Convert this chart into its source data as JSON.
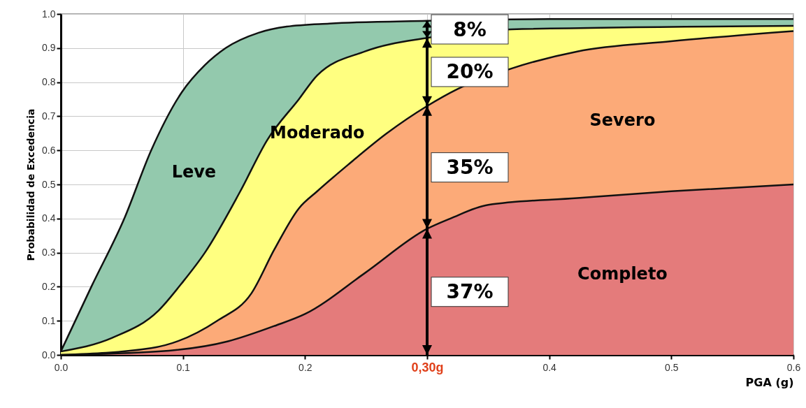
{
  "chart_data": {
    "type": "area",
    "xlabel": "PGA (g)",
    "ylabel": "Probabilidad de Excedencia",
    "xlim": [
      0,
      0.6
    ],
    "xticks": [
      {
        "value": 0,
        "label": "0.0"
      },
      0.1,
      0.2,
      {
        "value": 0.3,
        "label": "0,30g"
      },
      0.4,
      0.5,
      0.6
    ],
    "ylim": [
      0,
      1
    ],
    "yticks": [
      {
        "value": 0,
        "label": "0.0"
      },
      0.1,
      0.2,
      0.3,
      0.4,
      0.5,
      0.6,
      0.7,
      0.8,
      0.9,
      {
        "value": 1,
        "label": "1.0"
      }
    ],
    "grid": true,
    "series": [
      {
        "name": "Leve",
        "color": "#93c9ad",
        "x": [
          0,
          0.025,
          0.052,
          0.074,
          0.099,
          0.118,
          0.135,
          0.162,
          0.185,
          0.22,
          0.3,
          0.4,
          0.6
        ],
        "values": [
          0.01,
          0.2,
          0.4,
          0.6,
          0.77,
          0.85,
          0.9,
          0.945,
          0.963,
          0.972,
          0.98,
          0.985,
          0.985
        ]
      },
      {
        "name": "Moderado",
        "color": "#ffff80",
        "x": [
          0,
          0.042,
          0.08,
          0.099,
          0.118,
          0.147,
          0.169,
          0.195,
          0.21,
          0.249,
          0.3,
          0.369,
          0.6
        ],
        "values": [
          0.01,
          0.05,
          0.13,
          0.21,
          0.3,
          0.48,
          0.63,
          0.75,
          0.82,
          0.89,
          0.93,
          0.955,
          0.965
        ]
      },
      {
        "name": "Severo",
        "color": "#fcaa78",
        "x": [
          0,
          0.074,
          0.128,
          0.156,
          0.175,
          0.195,
          0.21,
          0.236,
          0.267,
          0.3,
          0.325,
          0.369,
          0.423,
          0.5,
          0.6
        ],
        "values": [
          0,
          0.02,
          0.1,
          0.18,
          0.31,
          0.43,
          0.48,
          0.56,
          0.65,
          0.73,
          0.78,
          0.84,
          0.89,
          0.92,
          0.95
        ]
      },
      {
        "name": "Completo",
        "color": "#e47b7b",
        "x": [
          0,
          0.08,
          0.137,
          0.175,
          0.2,
          0.249,
          0.3,
          0.319,
          0.35,
          0.423,
          0.5,
          0.6
        ],
        "values": [
          0,
          0.01,
          0.04,
          0.085,
          0.12,
          0.24,
          0.37,
          0.4,
          0.44,
          0.46,
          0.48,
          0.5
        ]
      }
    ],
    "ref_lines": [
      {
        "axis": "x",
        "value": 0.3
      }
    ],
    "annotations": [
      "8%",
      "20%",
      "35%",
      "37%"
    ]
  }
}
